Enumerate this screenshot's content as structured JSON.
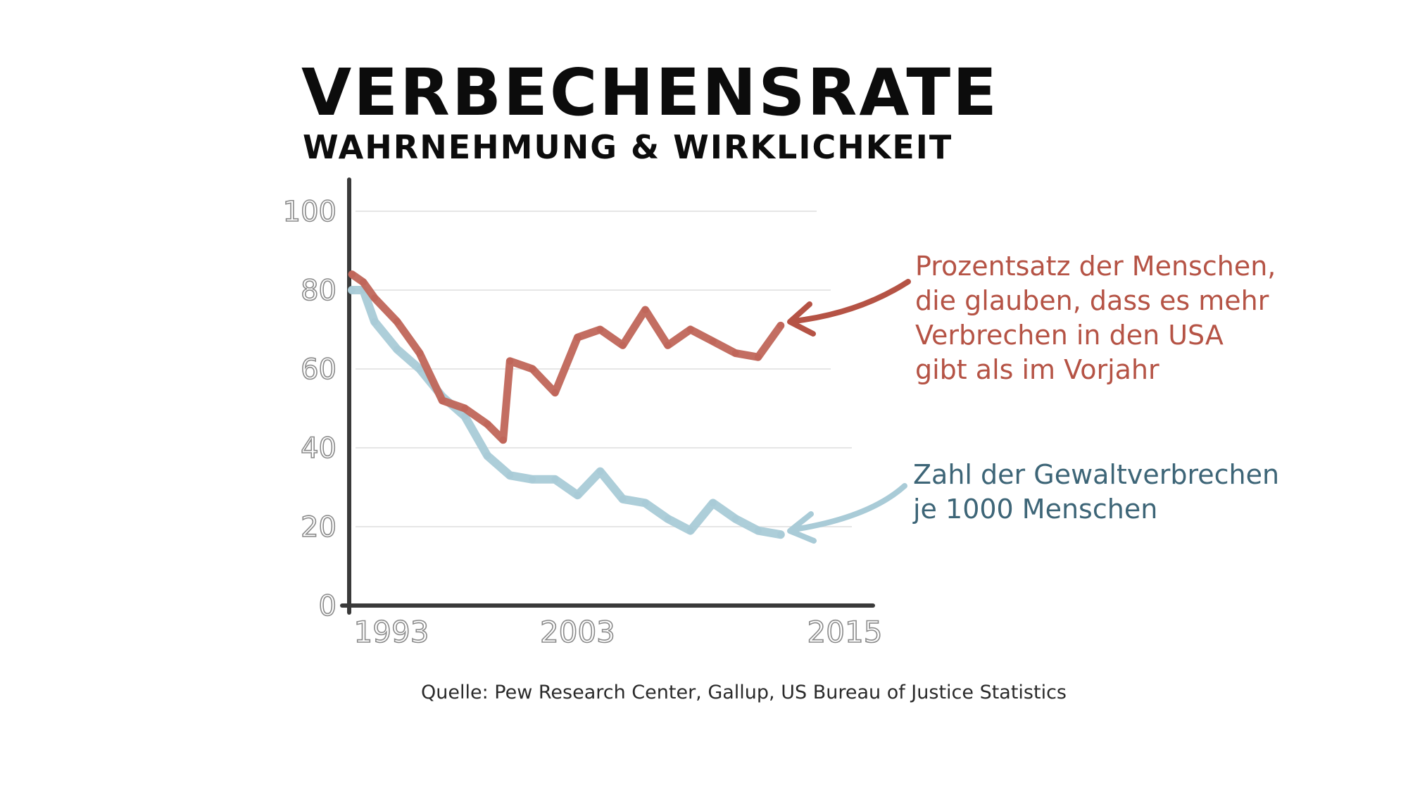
{
  "chart_data": {
    "type": "line",
    "title": "VERBECHENSRATE",
    "subtitle": "WAHRNEHMUNG & WIRKLICHKEIT",
    "xlabel": "",
    "ylabel": "",
    "xlim": [
      1993,
      2015
    ],
    "ylim": [
      0,
      100
    ],
    "x_ticks": [
      "1993",
      "2003",
      "2015"
    ],
    "y_ticks": [
      "0",
      "20",
      "40",
      "60",
      "80",
      "100"
    ],
    "grid": "horizontal",
    "series": [
      {
        "color": "#c0665a",
        "x": [
          1993,
          1993.5,
          1994,
          1995,
          1996,
          1997,
          1998,
          1999,
          1999.7,
          2000,
          2001,
          2002,
          2003,
          2004,
          2005,
          2006,
          2007,
          2008,
          2009,
          2010,
          2011,
          2012
        ],
        "values": [
          84,
          82,
          78,
          72,
          64,
          52,
          50,
          46,
          42,
          62,
          60,
          54,
          68,
          70,
          66,
          75,
          66,
          70,
          67,
          64,
          63,
          71
        ]
      },
      {
        "color": "#a9cbd7",
        "x": [
          1993,
          1993.5,
          1994,
          1995,
          1996,
          1997,
          1998,
          1999,
          2000,
          2001,
          2002,
          2003,
          2004,
          2005,
          2006,
          2007,
          2008,
          2009,
          2010,
          2011,
          2012
        ],
        "values": [
          80,
          80,
          72,
          65,
          60,
          53,
          48,
          38,
          33,
          32,
          32,
          28,
          34,
          27,
          26,
          22,
          19,
          26,
          22,
          19,
          18
        ]
      }
    ],
    "annotations": [
      "Prozentsatz der Menschen, die glauben, dass es mehr Verbrechen in den USA gibt als im Vorjahr",
      "Zahl der Gewaltverbrechen je 1000 Menschen"
    ],
    "annotation_lines": {
      "red": [
        "Prozentsatz der Menschen,",
        "die glauben, dass es mehr",
        "Verbrechen in den USA",
        "gibt als im Vorjahr"
      ],
      "blue": [
        "Zahl der Gewaltverbrechen",
        "je 1000 Menschen"
      ]
    },
    "annotation_colors": {
      "red": "#b55345",
      "blue": "#3d6577"
    },
    "source": "Quelle: Pew Research Center, Gallup, US Bureau of Justice Statistics"
  }
}
